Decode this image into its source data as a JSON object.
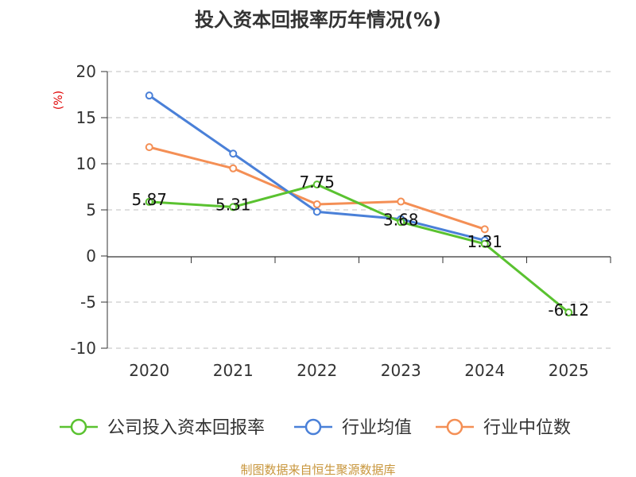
{
  "chart_data": {
    "type": "line",
    "title": "投入资本回报率历年情况(%)",
    "ylabel": "(%)",
    "xlabel": "",
    "categories": [
      "2020",
      "2021",
      "2022",
      "2023",
      "2024",
      "2025"
    ],
    "ylim": [
      -10,
      20
    ],
    "yticks": [
      20,
      15,
      10,
      5,
      0,
      -5,
      -10
    ],
    "grid": true,
    "legend_position": "bottom",
    "series": [
      {
        "name": "公司投入资本回报率",
        "color": "#5ac230",
        "values": [
          5.87,
          5.31,
          7.75,
          3.68,
          1.31,
          -6.12
        ],
        "labels": [
          "5.87",
          "5.31",
          "7.75",
          "3.68",
          "1.31",
          "-6.12"
        ]
      },
      {
        "name": "行业均值",
        "color": "#4a80d8",
        "values": [
          17.4,
          11.1,
          4.8,
          4.0,
          1.7,
          null
        ]
      },
      {
        "name": "行业中位数",
        "color": "#f48f55",
        "values": [
          11.8,
          9.5,
          5.6,
          5.9,
          2.9,
          null
        ]
      }
    ],
    "source": "制图数据来自恒生聚源数据库"
  }
}
